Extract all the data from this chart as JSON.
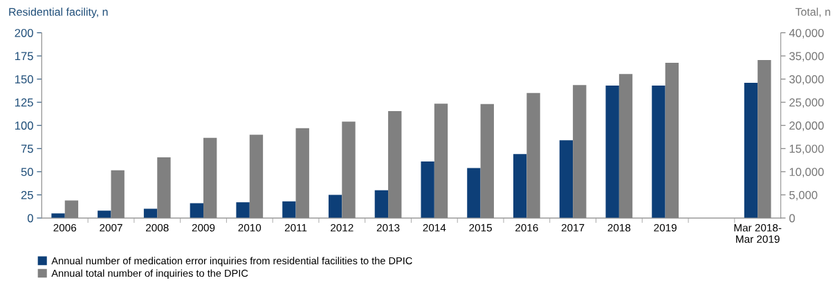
{
  "chart_data": {
    "type": "bar",
    "categories": [
      "2006",
      "2007",
      "2008",
      "2009",
      "2010",
      "2011",
      "2012",
      "2013",
      "2014",
      "2015",
      "2016",
      "2017",
      "2018",
      "2019",
      null,
      "Mar 2018-\nMar 2019"
    ],
    "series": [
      {
        "name": "Annual number of medication error inquiries from residential facilities to the DPIC",
        "color": "#0d3f78",
        "values": [
          5,
          8,
          10,
          16,
          17,
          18,
          25,
          30,
          61,
          54,
          69,
          84,
          143,
          143,
          null,
          146
        ]
      },
      {
        "name": "Annual total number of inquiries to the DPIC",
        "color": "#808080",
        "axis": "y2",
        "values": [
          3800,
          10300,
          13100,
          17300,
          18000,
          19400,
          20800,
          23100,
          24700,
          24600,
          27000,
          28700,
          31100,
          33500,
          null,
          34100
        ]
      }
    ],
    "ylabel": "Residential facility, n",
    "y2label": "Total, n",
    "ylim": [
      0,
      200
    ],
    "yticks": [
      0,
      25,
      50,
      75,
      100,
      125,
      150,
      175,
      200
    ],
    "y2lim": [
      0,
      40000
    ],
    "y2ticks": [
      {
        "value": 0,
        "label": "0"
      },
      {
        "value": 5000,
        "label": "5,000"
      },
      {
        "value": 10000,
        "label": "10,000"
      },
      {
        "value": 15000,
        "label": "15,000"
      },
      {
        "value": 20000,
        "label": "20,000"
      },
      {
        "value": 25000,
        "label": "25,000"
      },
      {
        "value": 30000,
        "label": "30,000"
      },
      {
        "value": 35000,
        "label": "35,000"
      },
      {
        "value": 40000,
        "label": "40,000"
      }
    ],
    "grid": false,
    "legend": "bottom left"
  }
}
